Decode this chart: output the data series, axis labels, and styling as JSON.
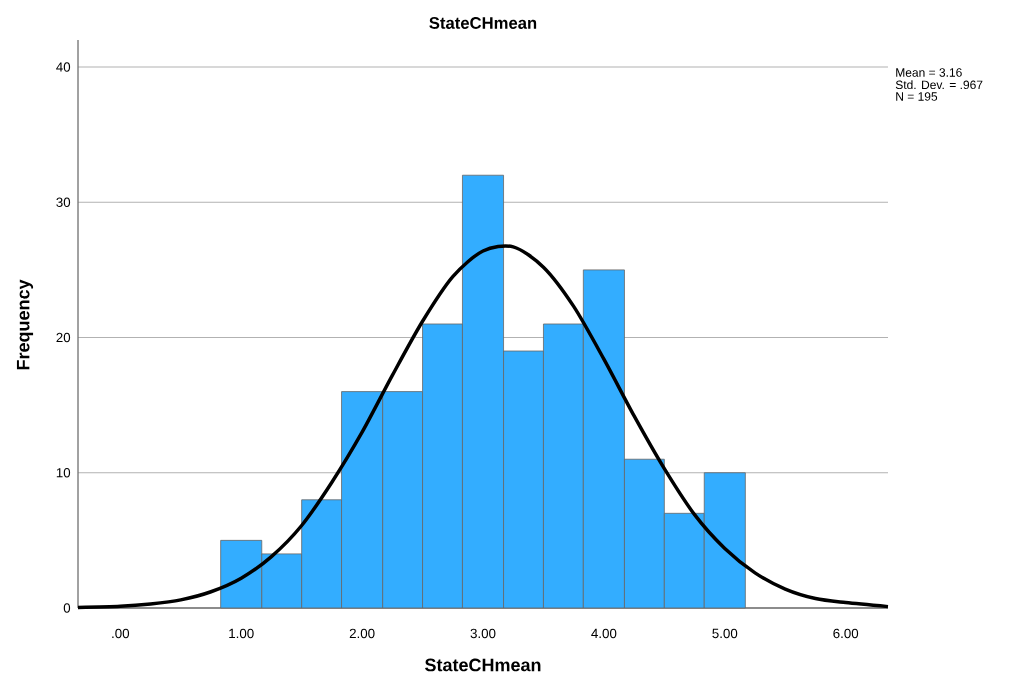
{
  "chart_data": {
    "type": "histogram",
    "title": "StateCHmean",
    "xlabel": "StateCHmean",
    "ylabel": "Frequency",
    "bins": [
      0.83,
      1.17,
      1.5,
      1.83,
      2.17,
      2.5,
      2.83,
      3.17,
      3.5,
      3.83,
      4.17,
      4.5,
      4.83,
      5.17
    ],
    "series": [
      {
        "color": "#33adff",
        "values": [
          5,
          4,
          8,
          16,
          16,
          21,
          32,
          19,
          21,
          25,
          11,
          7,
          10
        ]
      },
      {
        "type": "line",
        "color": "#000000",
        "x": [
          -0.35,
          0,
          0.25,
          0.5,
          0.75,
          1,
          1.25,
          1.5,
          1.75,
          2,
          2.25,
          2.5,
          2.75,
          3,
          3.25,
          3.5,
          3.75,
          4,
          4.25,
          4.5,
          4.75,
          5,
          5.25,
          5.5,
          5.75,
          6,
          6.35
        ],
        "values": [
          0.04,
          0.13,
          0.3,
          0.6,
          1.2,
          2.2,
          3.8,
          6.1,
          9.3,
          13.0,
          17.2,
          21.2,
          24.5,
          26.4,
          26.7,
          25.2,
          22.3,
          18.4,
          14.2,
          10.3,
          6.9,
          4.4,
          2.6,
          1.4,
          0.7,
          0.4,
          0.1
        ]
      }
    ],
    "xlim": [
      -0.35,
      6.35
    ],
    "ylim": [
      0,
      42
    ],
    "xticks": [
      {
        "value": 0,
        "label": ".00"
      },
      {
        "value": 1,
        "label": "1.00"
      },
      {
        "value": 2,
        "label": "2.00"
      },
      {
        "value": 3,
        "label": "3.00"
      },
      {
        "value": 4,
        "label": "4.00"
      },
      {
        "value": 5,
        "label": "5.00"
      },
      {
        "value": 6,
        "label": "6.00"
      }
    ],
    "yticks": [
      0,
      10,
      20,
      30,
      40
    ],
    "grid": "y",
    "annotations": [
      "Mean = 3.16",
      "Std. Dev. = .967",
      "N = 195"
    ]
  }
}
